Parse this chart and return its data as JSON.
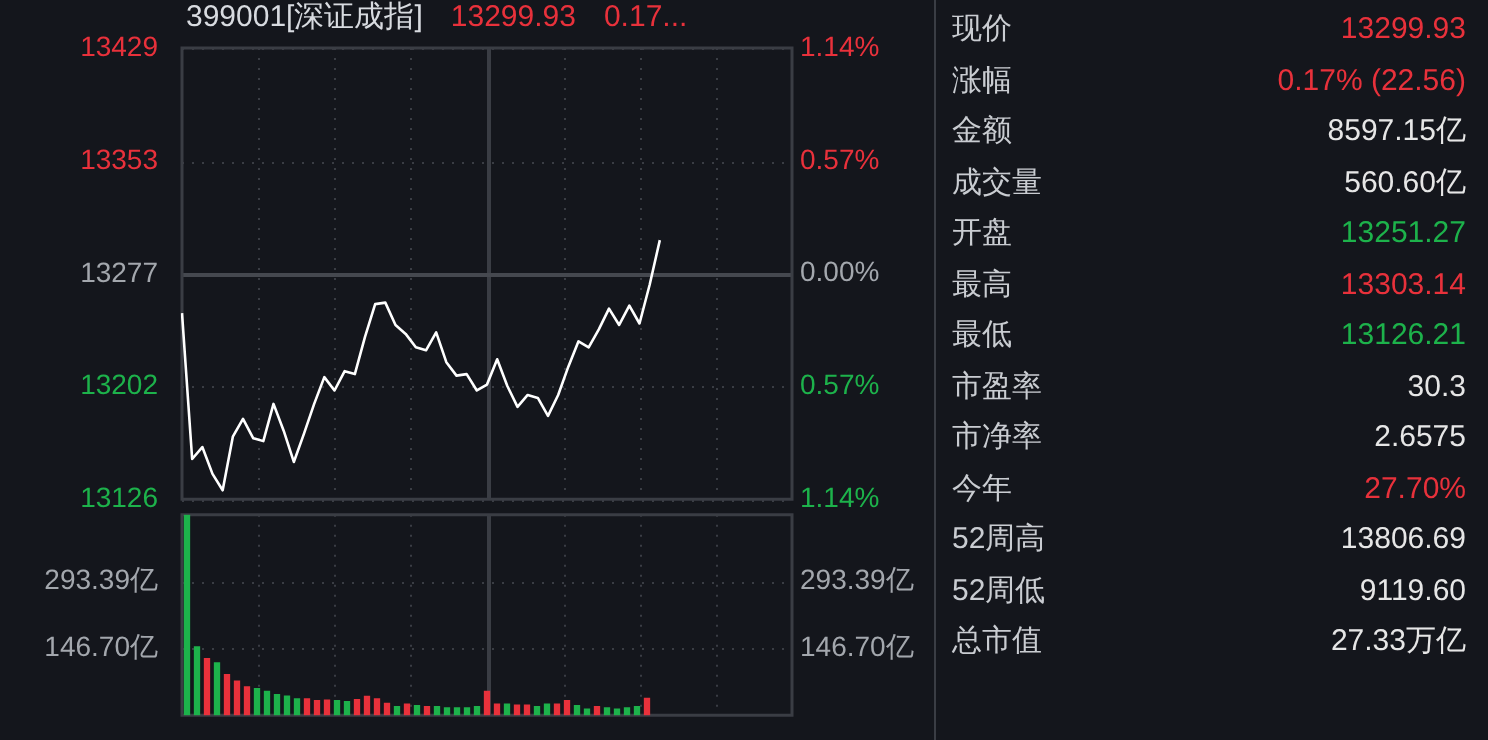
{
  "chart_data": [
    {
      "type": "line",
      "title": "399001[深证成指]",
      "annotations": [
        "13299.93",
        "0.17..."
      ],
      "marker": "none",
      "grid": true,
      "categories": [
        null,
        null,
        null,
        null,
        null,
        null,
        null,
        null,
        null,
        null,
        null,
        null,
        null,
        null,
        null,
        null,
        null,
        null,
        null,
        null,
        null,
        null,
        null,
        null,
        null,
        null,
        null,
        null,
        null,
        null,
        null,
        null,
        null,
        null,
        null,
        null,
        null,
        null,
        null,
        null,
        null,
        null,
        null,
        null,
        null,
        null,
        null,
        null,
        null,
        null,
        null,
        null,
        null,
        null,
        null,
        null,
        null,
        null,
        null,
        null,
        null
      ],
      "ylim": [
        13126,
        13429
      ],
      "yticks": [
        13126,
        13202,
        13277,
        13353,
        13429
      ],
      "y2lim": [
        -1.14,
        1.14
      ],
      "y2ticks": [
        {
          "value": -1.14,
          "label": "1.14%"
        },
        {
          "value": -0.57,
          "label": "0.57%"
        },
        {
          "value": 0,
          "label": "0.00%"
        },
        {
          "value": 0.57,
          "label": "0.57%"
        },
        {
          "value": 1.14,
          "label": "1.14%"
        }
      ],
      "ref_lines": [
        {
          "axis": "y",
          "value": 13277,
          "color": "#45484f"
        }
      ],
      "series": [
        {
          "color": "#ffffff",
          "values": [
            13251,
            13153,
            13161,
            13143,
            13132,
            13168,
            13180,
            13167,
            13165,
            13190,
            13172,
            13151,
            13170,
            13190,
            13208,
            13199,
            13212,
            13210,
            13235,
            13257,
            13258,
            13243,
            13237,
            13228,
            13226,
            13238,
            13218,
            13209,
            13210,
            13199,
            13203,
            13220,
            13202,
            13188,
            13196,
            13194,
            13182,
            13196,
            13215,
            13232,
            13228,
            13240,
            13254,
            13243,
            13256,
            13244,
            13270,
            13300,
            null,
            null,
            null,
            null,
            null,
            null,
            null,
            null,
            null,
            null,
            null,
            null,
            null
          ]
        }
      ]
    },
    {
      "type": "bar",
      "grid": true,
      "categories": [
        null,
        null,
        null,
        null,
        null,
        null,
        null,
        null,
        null,
        null,
        null,
        null,
        null,
        null,
        null,
        null,
        null,
        null,
        null,
        null,
        null,
        null,
        null,
        null,
        null,
        null,
        null,
        null,
        null,
        null,
        null,
        null,
        null,
        null,
        null,
        null,
        null,
        null,
        null,
        null,
        null,
        null,
        null,
        null,
        null,
        null,
        null,
        null,
        null,
        null,
        null,
        null,
        null,
        null,
        null,
        null,
        null,
        null,
        null,
        null,
        null
      ],
      "ylim": [
        0,
        440
      ],
      "yticks": [
        {
          "value": 146.7,
          "label": "146.70亿"
        },
        {
          "value": 293.39,
          "label": "293.39亿"
        }
      ],
      "y2lim": [
        0,
        440
      ],
      "y2ticks": [
        {
          "value": 146.7,
          "label": "146.70亿"
        },
        {
          "value": 293.39,
          "label": "293.39亿"
        }
      ],
      "values": [
        440,
        150,
        124,
        115,
        89,
        75,
        62,
        58,
        52,
        45,
        42,
        36,
        36,
        32,
        33,
        32,
        30,
        34,
        41,
        36,
        26,
        19,
        24,
        21,
        19,
        19,
        16,
        16,
        16,
        19,
        52,
        24,
        24,
        22,
        22,
        19,
        24,
        24,
        32,
        21,
        13,
        19,
        16,
        13,
        16,
        19,
        37,
        null,
        null,
        null,
        null,
        null,
        null,
        null,
        null,
        null,
        null,
        null,
        null,
        null,
        null
      ],
      "colors": [
        "#1db24b",
        "#1db24b",
        "#e8313b",
        "#1db24b",
        "#e8313b",
        "#e8313b",
        "#e8313b",
        "#1db24b",
        "#1db24b",
        "#1db24b",
        "#1db24b",
        "#1db24b",
        "#e8313b",
        "#e8313b",
        "#e8313b",
        "#1db24b",
        "#1db24b",
        "#e8313b",
        "#e8313b",
        "#e8313b",
        "#e8313b",
        "#1db24b",
        "#e8313b",
        "#1db24b",
        "#e8313b",
        "#1db24b",
        "#1db24b",
        "#1db24b",
        "#1db24b",
        "#1db24b",
        "#e8313b",
        "#e8313b",
        "#1db24b",
        "#e8313b",
        "#e8313b",
        "#1db24b",
        "#1db24b",
        "#e8313b",
        "#e8313b",
        "#1db24b",
        "#1db24b",
        "#e8313b",
        "#1db24b",
        "#1db24b",
        "#1db24b",
        "#1db24b",
        "#e8313b",
        null,
        null,
        null,
        null,
        null,
        null,
        null,
        null,
        null,
        null,
        null,
        null,
        null,
        null
      ]
    },
    {
      "type": "other",
      "categories": [
        "现价",
        "涨幅",
        "金额",
        "成交量",
        "开盘",
        "最高",
        "最低",
        "市盈率",
        "市净率",
        "今年",
        "52周高",
        "52周低",
        "总市值"
      ],
      "value_labels": [
        "13299.93",
        "0.17% (22.56)",
        "8597.15亿",
        "560.60亿",
        "13251.27",
        "13303.14",
        "13126.21",
        "30.3",
        "2.6575",
        "27.70%",
        "13806.69",
        "9119.60",
        "27.33万亿"
      ],
      "colors": [
        "#e8313b",
        "#e8313b",
        "#e6e6e6",
        "#e6e6e6",
        "#1db24b",
        "#e8313b",
        "#1db24b",
        "#e6e6e6",
        "#e6e6e6",
        "#e8313b",
        "#e6e6e6",
        "#e6e6e6",
        "#e6e6e6"
      ]
    }
  ]
}
